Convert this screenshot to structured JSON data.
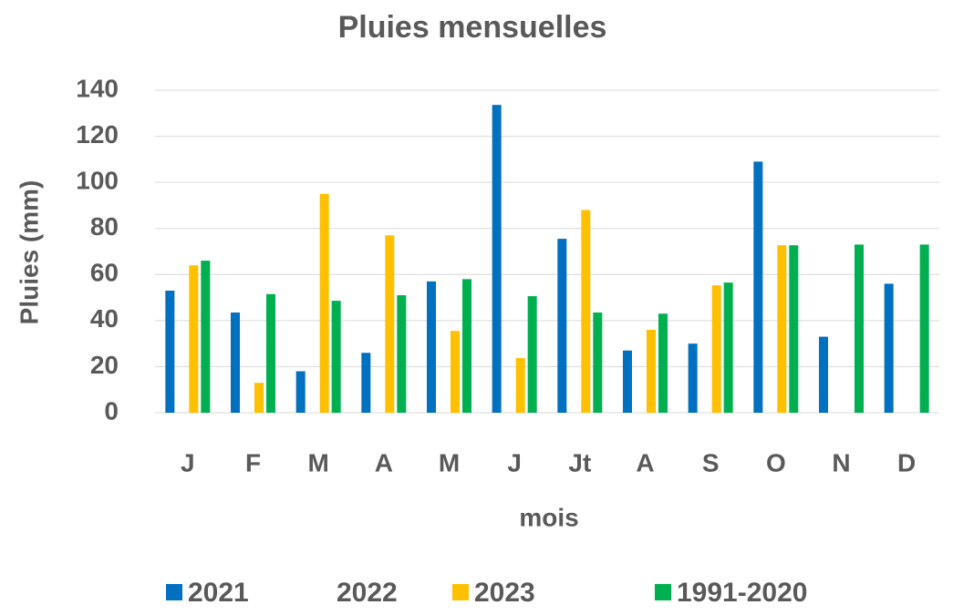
{
  "chart_data": {
    "type": "bar",
    "title": "Pluies mensuelles",
    "x_label": "mois",
    "y_label": "Pluies (mm)",
    "categories": [
      "J",
      "F",
      "M",
      "A",
      "M",
      "J",
      "Jt",
      "A",
      "S",
      "O",
      "N",
      "D"
    ],
    "series": [
      {
        "name": "2021",
        "color": "#0070c0",
        "values": [
          53,
          43.5,
          18,
          26,
          57,
          133.6,
          75.5,
          27,
          30,
          109,
          33,
          56
        ]
      },
      {
        "name": "2022",
        "color": "#ffffff",
        "values": [
          null,
          null,
          null,
          null,
          null,
          null,
          null,
          null,
          null,
          null,
          null,
          null
        ]
      },
      {
        "name": "2023",
        "color": "#ffc000",
        "values": [
          64,
          13,
          95,
          77,
          35.5,
          23.7,
          88,
          36,
          55.3,
          72.7,
          null,
          null
        ]
      },
      {
        "name": "1991-2020",
        "color": "#00b050",
        "values": [
          66,
          51.5,
          48.6,
          51,
          58,
          50.6,
          43.5,
          43,
          56.5,
          72.7,
          73,
          73
        ]
      }
    ],
    "ylim": [
      0,
      140
    ],
    "yticks": [
      0,
      20,
      40,
      60,
      80,
      100,
      120,
      140
    ],
    "grid": true,
    "legend": "bottom"
  }
}
